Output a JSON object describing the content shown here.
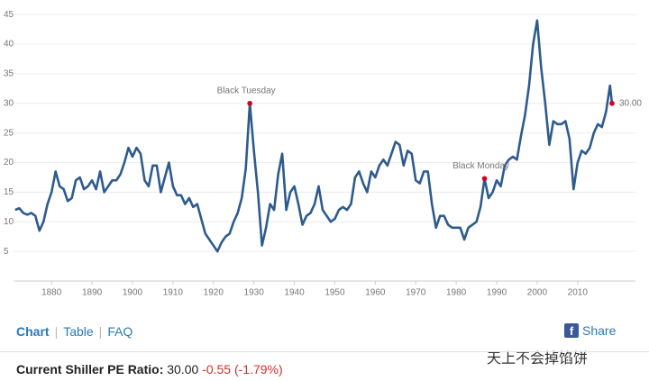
{
  "chart_data": {
    "type": "line",
    "x": [
      1871,
      1872,
      1873,
      1874,
      1875,
      1876,
      1877,
      1878,
      1879,
      1880,
      1881,
      1882,
      1883,
      1884,
      1885,
      1886,
      1887,
      1888,
      1889,
      1890,
      1891,
      1892,
      1893,
      1894,
      1895,
      1896,
      1897,
      1898,
      1899,
      1900,
      1901,
      1902,
      1903,
      1904,
      1905,
      1906,
      1907,
      1908,
      1909,
      1910,
      1911,
      1912,
      1913,
      1914,
      1915,
      1916,
      1917,
      1918,
      1919,
      1920,
      1921,
      1922,
      1923,
      1924,
      1925,
      1926,
      1927,
      1928,
      1929,
      1930,
      1931,
      1932,
      1933,
      1934,
      1935,
      1936,
      1937,
      1938,
      1939,
      1940,
      1941,
      1942,
      1943,
      1944,
      1945,
      1946,
      1947,
      1948,
      1949,
      1950,
      1951,
      1952,
      1953,
      1954,
      1955,
      1956,
      1957,
      1958,
      1959,
      1960,
      1961,
      1962,
      1963,
      1964,
      1965,
      1966,
      1967,
      1968,
      1969,
      1970,
      1971,
      1972,
      1973,
      1974,
      1975,
      1976,
      1977,
      1978,
      1979,
      1980,
      1981,
      1982,
      1983,
      1984,
      1985,
      1986,
      1987,
      1988,
      1989,
      1990,
      1991,
      1992,
      1993,
      1994,
      1995,
      1996,
      1997,
      1998,
      1999,
      2000,
      2001,
      2002,
      2003,
      2004,
      2005,
      2006,
      2007,
      2008,
      2009,
      2010,
      2011,
      2012,
      2013,
      2014,
      2015,
      2016,
      2017,
      2018,
      2018.5
    ],
    "values": [
      12,
      12.3,
      11.5,
      11.2,
      11.5,
      11,
      8.5,
      10,
      13,
      15,
      18.5,
      16,
      15.5,
      13.5,
      14,
      17,
      17.5,
      15.5,
      16,
      17,
      15.5,
      18.5,
      15,
      16,
      17,
      17,
      18,
      20,
      22.5,
      21,
      22.5,
      21.5,
      17,
      16,
      19.5,
      19.5,
      15,
      17.5,
      20,
      16,
      14.5,
      14.5,
      13,
      14,
      12.5,
      13,
      10.5,
      8,
      7,
      6,
      5,
      6.5,
      7.5,
      8,
      10,
      11.5,
      14,
      19,
      30,
      22,
      15,
      6,
      9,
      13,
      12,
      18,
      21.5,
      12,
      15,
      16,
      13,
      9.5,
      11,
      11.5,
      13,
      16,
      12,
      11,
      10,
      10.5,
      12,
      12.5,
      12,
      13,
      17.5,
      18.5,
      16.5,
      15,
      18.5,
      17.5,
      19.5,
      20.5,
      19.5,
      21.5,
      23.5,
      23,
      19.5,
      22,
      21.5,
      17,
      16.5,
      18.5,
      18.5,
      13,
      9,
      11,
      11,
      9.5,
      9,
      9,
      9,
      7,
      9,
      9.5,
      10,
      12.5,
      17.3,
      14,
      15,
      17,
      16,
      19.5,
      20.5,
      21,
      20.5,
      24.5,
      28,
      33,
      40,
      44,
      36,
      30,
      23,
      27,
      26.5,
      26.5,
      27,
      24,
      15.5,
      20,
      22,
      21.5,
      22.5,
      25,
      26.5,
      26,
      28.5,
      33,
      30
    ],
    "color": "#2e5b8e",
    "xlim": [
      1870.6,
      2024.3
    ],
    "xticks": [
      1880,
      1890,
      1900,
      1910,
      1920,
      1930,
      1940,
      1950,
      1960,
      1970,
      1980,
      1990,
      2000,
      2010
    ],
    "ylim": [
      0,
      46.7
    ],
    "yticks": [
      5,
      10,
      15,
      20,
      25,
      30,
      35,
      40,
      45
    ],
    "grid": true,
    "annotations": [
      {
        "text": "Black Tuesday",
        "x": 1929,
        "y": 30
      },
      {
        "text": "Black Monday",
        "x": 1987,
        "y": 17.3
      },
      {
        "text": "30.00",
        "x": 2018.5,
        "y": 30
      }
    ]
  },
  "nav": [
    "Chart",
    "Table",
    "FAQ"
  ],
  "share": "Share",
  "watermark": "天上不会掉馅饼",
  "status": {
    "label": "Current Shiller PE Ratio:",
    "value": "30.00",
    "change": "-0.55 (-1.79%)"
  }
}
